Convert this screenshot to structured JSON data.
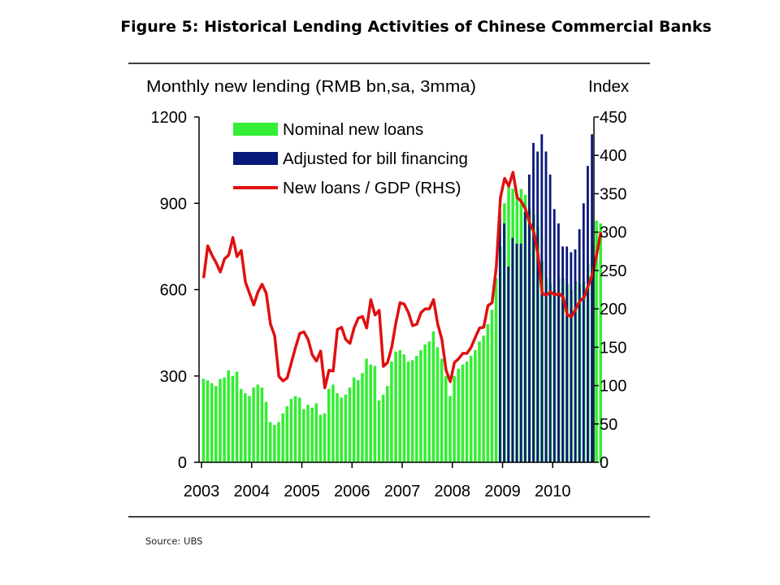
{
  "figure": {
    "title": "Figure 5: Historical Lending Activities of Chinese Commercial Banks",
    "source": "Source: UBS"
  },
  "chart_data": {
    "type": "bar",
    "ylabel": "Monthly new lending (RMB bn,sa, 3mma)",
    "y2label": "Index",
    "ylim": [
      0,
      1200
    ],
    "y2lim": [
      0,
      450
    ],
    "yticks": [
      0,
      300,
      600,
      900,
      1200
    ],
    "y2ticks": [
      0,
      50,
      100,
      150,
      200,
      250,
      300,
      350,
      400,
      450
    ],
    "x_ticks": [
      "2003",
      "2004",
      "2005",
      "2006",
      "2007",
      "2008",
      "2009",
      "2010"
    ],
    "x_start": "2003-01",
    "legend_position": "top-left",
    "grid": false,
    "colors": {
      "nominal": "#33ee33",
      "adjusted": "#0a1a7a",
      "ratio": "#e01010"
    },
    "series": [
      {
        "name": "Nominal new loans",
        "kind": "bar",
        "values": [
          290,
          285,
          275,
          265,
          290,
          295,
          320,
          300,
          315,
          255,
          240,
          230,
          260,
          270,
          260,
          210,
          140,
          130,
          140,
          170,
          195,
          220,
          230,
          225,
          185,
          200,
          190,
          205,
          165,
          170,
          255,
          270,
          240,
          225,
          235,
          260,
          295,
          285,
          310,
          360,
          340,
          335,
          215,
          235,
          265,
          350,
          385,
          390,
          375,
          350,
          355,
          370,
          390,
          410,
          420,
          455,
          400,
          360,
          300,
          230,
          300,
          325,
          340,
          350,
          370,
          390,
          420,
          440,
          480,
          530,
          640,
          750,
          900,
          960,
          950,
          930,
          950,
          930,
          880,
          860,
          820,
          700,
          640,
          620,
          600,
          640,
          640,
          620,
          600,
          630,
          620,
          630,
          690,
          760,
          840,
          830
        ]
      },
      {
        "name": "Adjusted for bill financing",
        "kind": "bar",
        "start_index": 71,
        "values": [
          870,
          830,
          680,
          780,
          760,
          760,
          870,
          1000,
          1110,
          1080,
          1140,
          1080,
          1000,
          880,
          830,
          750,
          750,
          730,
          740,
          810,
          900,
          1030,
          1140
        ]
      },
      {
        "name": "New loans / GDP (RHS)",
        "kind": "line",
        "values": [
          240,
          282,
          270,
          260,
          248,
          265,
          270,
          293,
          268,
          276,
          235,
          220,
          205,
          222,
          232,
          220,
          180,
          165,
          112,
          106,
          110,
          130,
          150,
          168,
          170,
          160,
          140,
          132,
          145,
          97,
          120,
          119,
          173,
          176,
          160,
          155,
          175,
          188,
          190,
          175,
          212,
          192,
          198,
          125,
          130,
          150,
          182,
          208,
          206,
          195,
          178,
          180,
          195,
          200,
          200,
          212,
          180,
          160,
          120,
          105,
          130,
          135,
          142,
          142,
          150,
          163,
          175,
          176,
          204,
          208,
          254,
          345,
          370,
          360,
          378,
          345,
          340,
          330,
          312,
          300,
          270,
          220,
          218,
          222,
          218,
          220,
          215,
          192,
          190,
          200,
          210,
          215,
          230,
          245,
          270,
          300
        ]
      }
    ]
  }
}
